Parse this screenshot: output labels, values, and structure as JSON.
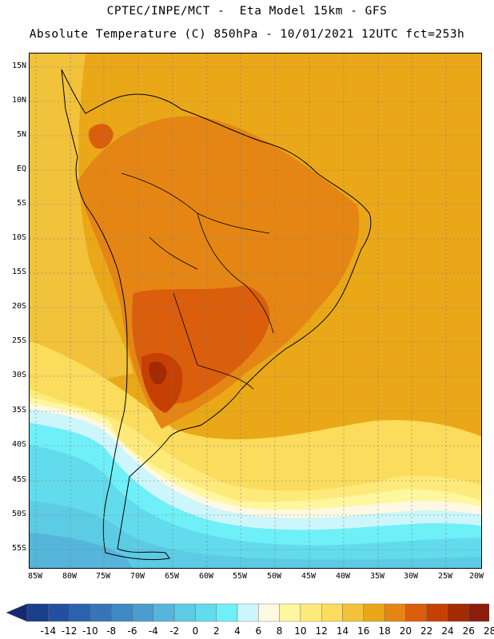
{
  "header": {
    "line1": "CPTEC/INPE/MCT -  Eta Model 15km - GFS",
    "line2": "Absolute Temperature (C) 850hPa - 10/01/2021 12UTC fct=253h"
  },
  "map": {
    "lat_labels": [
      "15N",
      "10N",
      "5N",
      "EQ",
      "5S",
      "10S",
      "15S",
      "20S",
      "25S",
      "30S",
      "35S",
      "40S",
      "45S",
      "50S",
      "55S"
    ],
    "lon_labels": [
      "85W",
      "80W",
      "75W",
      "70W",
      "65W",
      "60W",
      "55W",
      "50W",
      "45W",
      "40W",
      "35W",
      "30W",
      "25W",
      "20W"
    ],
    "gridlines": true
  },
  "colorbar": {
    "labels": [
      "-14",
      "-12",
      "-10",
      "-8",
      "-6",
      "-4",
      "-2",
      "0",
      "2",
      "4",
      "6",
      "8",
      "10",
      "12",
      "14",
      "16",
      "18",
      "20",
      "22",
      "24",
      "26",
      "28"
    ],
    "colors": [
      "#1a3f8c",
      "#234f9e",
      "#2c62ad",
      "#3775b8",
      "#3f89c4",
      "#4a9dcf",
      "#55b5db",
      "#5ccbe4",
      "#62dcec",
      "#6ff0f8",
      "#ccf6fb",
      "#fff8e2",
      "#fff6a0",
      "#feea7a",
      "#fbdc5c",
      "#f2c23a",
      "#eaa818",
      "#e58614",
      "#db5e0c",
      "#c64004",
      "#a42a04",
      "#8a1f0c",
      "#7a1424"
    ],
    "arrow_left_color": "#142a6e",
    "arrow_right_color": "#6e0a22"
  }
}
